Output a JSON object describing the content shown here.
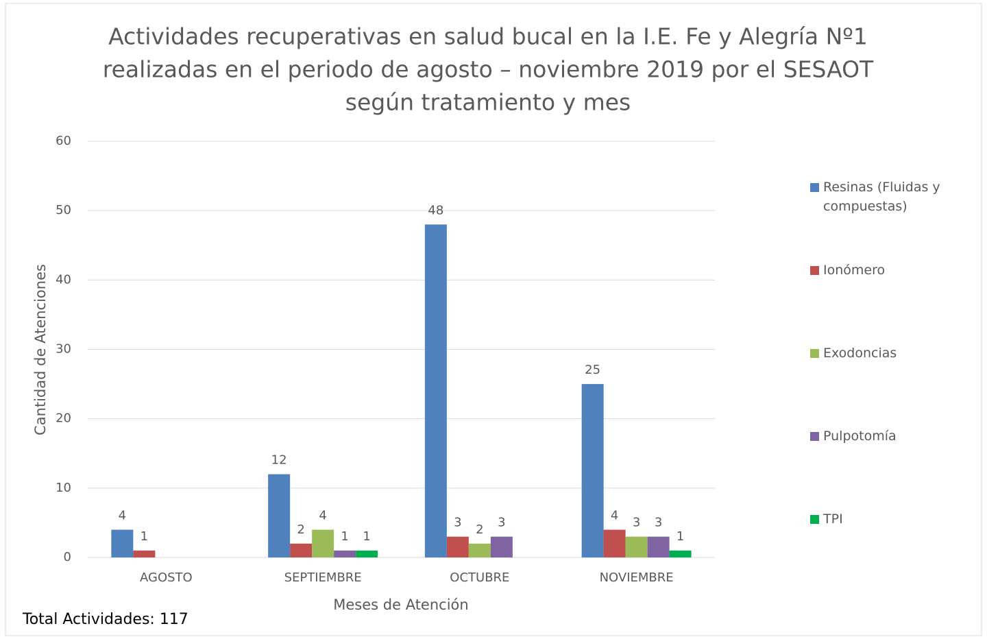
{
  "chart_data": {
    "type": "bar",
    "title": [
      "Actividades recuperativas en salud bucal en la I.E. Fe y Alegría Nº1",
      "realizadas en el periodo de agosto – noviembre 2019 por el SESAOT",
      "según tratamiento y mes"
    ],
    "x_label": "Meses de Atención",
    "y_label": "Cantidad de Atenciones",
    "annotation": "Total Actividades: 117",
    "categories": [
      "AGOSTO",
      "SEPTIEMBRE",
      "OCTUBRE",
      "NOVIEMBRE"
    ],
    "series": [
      {
        "name": "Resinas (Fluidas y compuestas)",
        "color": "#4f81bd",
        "values": [
          4,
          12,
          48,
          25
        ]
      },
      {
        "name": "Ionómero",
        "color": "#c0504d",
        "values": [
          1,
          2,
          3,
          4
        ]
      },
      {
        "name": "Exodoncias",
        "color": "#9bbb59",
        "values": [
          null,
          4,
          2,
          3
        ]
      },
      {
        "name": "Pulpotomía",
        "color": "#8064a2",
        "values": [
          null,
          1,
          3,
          3
        ]
      },
      {
        "name": "TPI",
        "color": "#00b050",
        "values": [
          null,
          1,
          null,
          1
        ]
      }
    ],
    "ylim": [
      0,
      60
    ],
    "yticks": [
      0,
      10,
      20,
      30,
      40,
      50,
      60
    ],
    "grid": true,
    "legend": "right"
  }
}
